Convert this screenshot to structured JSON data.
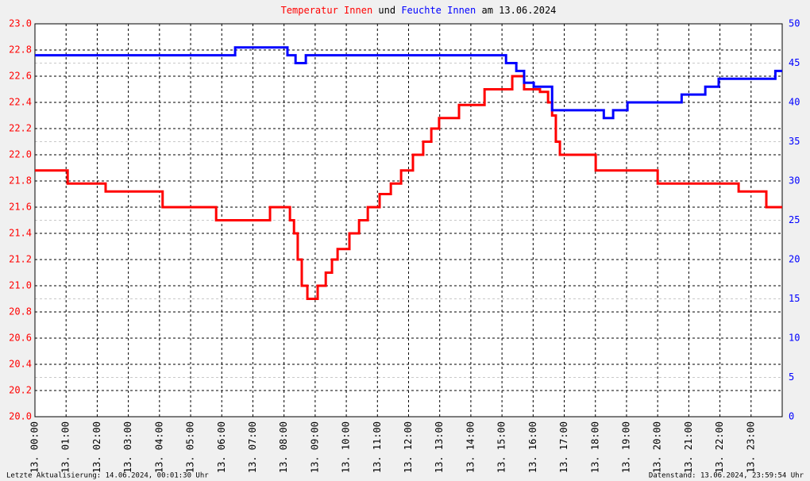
{
  "chart_data": {
    "type": "line",
    "drawstyle": "steps-post",
    "title_connector": "und",
    "title_date": "am 13.06.2024",
    "footer_left": "Letzte Aktualisierung: 14.06.2024, 00:01:30 Uhr",
    "footer_right": "Datenstand: 13.06.2024, 23:59:54 Uhr",
    "xlim": [
      0,
      24
    ],
    "xticks": [
      {
        "value": 0,
        "label": "13. 00:00"
      },
      {
        "value": 1,
        "label": "13. 01:00"
      },
      {
        "value": 2,
        "label": "13. 02:00"
      },
      {
        "value": 3,
        "label": "13. 03:00"
      },
      {
        "value": 4,
        "label": "13. 04:00"
      },
      {
        "value": 5,
        "label": "13. 05:00"
      },
      {
        "value": 6,
        "label": "13. 06:00"
      },
      {
        "value": 7,
        "label": "13. 07:00"
      },
      {
        "value": 8,
        "label": "13. 08:00"
      },
      {
        "value": 9,
        "label": "13. 09:00"
      },
      {
        "value": 10,
        "label": "13. 10:00"
      },
      {
        "value": 11,
        "label": "13. 11:00"
      },
      {
        "value": 12,
        "label": "13. 12:00"
      },
      {
        "value": 13,
        "label": "13. 13:00"
      },
      {
        "value": 14,
        "label": "13. 14:00"
      },
      {
        "value": 15,
        "label": "13. 15:00"
      },
      {
        "value": 16,
        "label": "13. 16:00"
      },
      {
        "value": 17,
        "label": "13. 17:00"
      },
      {
        "value": 18,
        "label": "13. 18:00"
      },
      {
        "value": 19,
        "label": "13. 19:00"
      },
      {
        "value": 20,
        "label": "13. 20:00"
      },
      {
        "value": 21,
        "label": "13. 21:00"
      },
      {
        "value": 22,
        "label": "13. 22:00"
      },
      {
        "value": 23,
        "label": "13. 23:00"
      }
    ],
    "ylim": [
      20,
      23
    ],
    "yticks": [
      {
        "value": 20,
        "label": "20.0"
      },
      20.2,
      20.4,
      20.6,
      20.8,
      {
        "value": 21,
        "label": "21.0"
      },
      21.2,
      21.4,
      21.6,
      21.8,
      {
        "value": 22,
        "label": "22.0"
      },
      22.2,
      22.4,
      22.6,
      22.8,
      {
        "value": 23,
        "label": "23.0"
      }
    ],
    "y2lim": [
      0,
      50
    ],
    "y2ticks": [
      0,
      5,
      10,
      15,
      20,
      25,
      30,
      35,
      40,
      45,
      50
    ],
    "grid": true,
    "series": [
      {
        "name": "Temperatur Innen",
        "color": "#ff0000",
        "x": [
          0,
          1.05,
          2.27,
          4.1,
          5.82,
          7.55,
          8.19,
          8.32,
          8.44,
          8.57,
          8.75,
          9.08,
          9.34,
          9.54,
          9.72,
          10.1,
          10.41,
          10.69,
          11.07,
          11.43,
          11.76,
          12.14,
          12.47,
          12.73,
          12.98,
          13.62,
          14.44,
          15.33,
          15.71,
          16.22,
          16.48,
          16.61,
          16.73,
          16.86,
          18.01,
          20.0,
          22.6,
          23.49,
          24
        ],
        "values": [
          21.88,
          21.78,
          21.72,
          21.6,
          21.5,
          21.6,
          21.5,
          21.4,
          21.2,
          21.0,
          20.9,
          21.0,
          21.1,
          21.2,
          21.28,
          21.4,
          21.5,
          21.6,
          21.7,
          21.78,
          21.88,
          22.0,
          22.1,
          22.2,
          22.28,
          22.38,
          22.5,
          22.6,
          22.5,
          22.48,
          22.4,
          22.3,
          22.1,
          22.0,
          21.88,
          21.78,
          21.72,
          21.6,
          21.6
        ]
      },
      {
        "name": "Feuchte Innen",
        "color": "#0000ff",
        "axis": "y2",
        "x": [
          0,
          6.43,
          8.11,
          8.37,
          8.7,
          15.13,
          15.46,
          15.71,
          16.02,
          16.61,
          18.27,
          18.57,
          19.03,
          20.77,
          21.53,
          21.96,
          23.78,
          24
        ],
        "values": [
          46,
          47,
          46,
          45,
          46,
          45,
          44,
          42.5,
          42,
          39,
          38,
          39,
          40,
          41,
          42,
          43,
          44,
          44
        ]
      }
    ]
  }
}
